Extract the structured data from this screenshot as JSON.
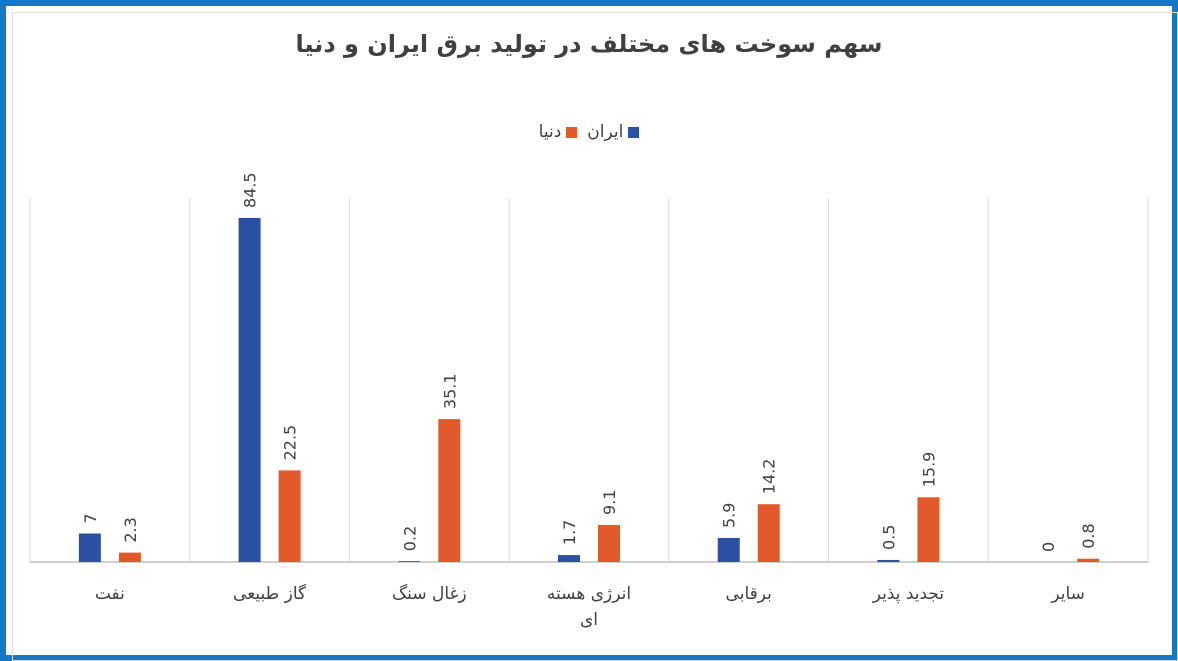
{
  "chart_data": {
    "type": "bar",
    "title": "سهم سوخت های مختلف در تولید برق ایران و دنیا",
    "categories": [
      "نفت",
      "گاز طبیعی",
      "زغال سنگ",
      "انرژی هسته ای",
      "برقابی",
      "تجدید پذیر",
      "سایر"
    ],
    "series": [
      {
        "name": "ایران",
        "color": "#2a4fa3",
        "values": [
          7,
          84.5,
          0.2,
          1.7,
          5.9,
          0.5,
          0
        ]
      },
      {
        "name": "دنیا",
        "color": "#e25a2b",
        "values": [
          2.3,
          22.5,
          35.1,
          9.1,
          14.2,
          15.9,
          0.8
        ]
      }
    ],
    "ylim": [
      0,
      85
    ],
    "legend_position": "top",
    "grid": false,
    "category_separators": true,
    "data_labels": true,
    "data_label_orientation": "vertical"
  }
}
